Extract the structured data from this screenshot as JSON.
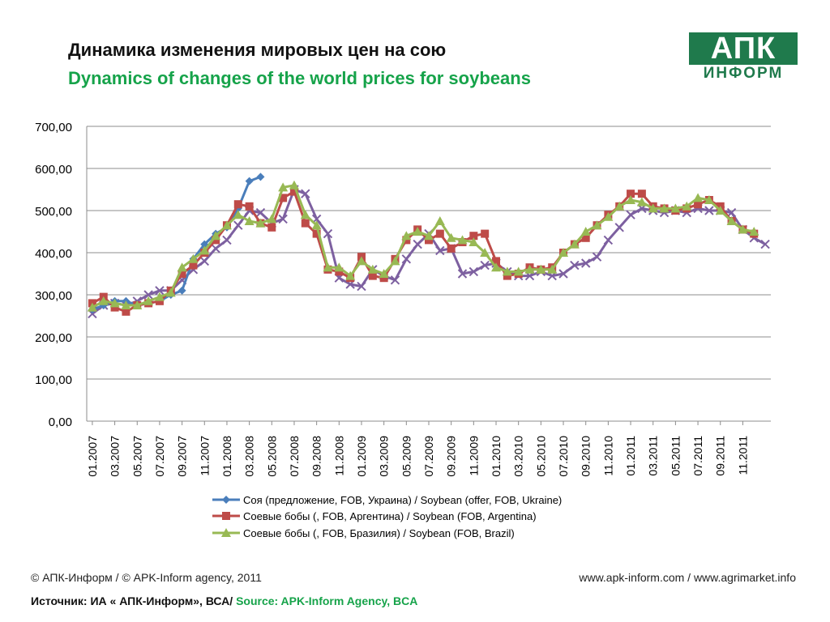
{
  "header": {
    "title_ru": "Динамика изменения мировых цен на сою",
    "title_en": "Dynamics of changes of the world prices for soybeans"
  },
  "logo": {
    "top": "АПК",
    "bottom": "ИНФОРМ"
  },
  "footer": {
    "copyright": "© АПК-Информ / © APK-Inform agency, 2011",
    "urls": "www.apk-inform.com / www.agrimarket.info",
    "source_ru": "Источник: ИА « АПК-Информ», ВСА/",
    "source_en": "Source: APK-Inform Agency, BCA"
  },
  "colors": {
    "ukraine": "#4a7ebb",
    "argentina": "#be4b48",
    "brazil": "#98b954",
    "fourth": "#7d60a0"
  },
  "chart_data": {
    "type": "line",
    "ylim": [
      0,
      700
    ],
    "ytick_labels": [
      "0,00",
      "100,00",
      "200,00",
      "300,00",
      "400,00",
      "500,00",
      "600,00",
      "700,00"
    ],
    "xtick_labels": [
      "01.2007",
      "03.2007",
      "05.2007",
      "07.2007",
      "09.2007",
      "11.2007",
      "01.2008",
      "03.2008",
      "05.2008",
      "07.2008",
      "09.2008",
      "11.2008",
      "01.2009",
      "03.2009",
      "05.2009",
      "07.2009",
      "09.2009",
      "11.2009",
      "01.2010",
      "03.2010",
      "05.2010",
      "07.2010",
      "09.2010",
      "11.2010",
      "01.2011",
      "03.2011",
      "05.2011",
      "07.2011",
      "09.2011",
      "11.2011"
    ],
    "grid": true,
    "legend_position": "bottom",
    "series": [
      {
        "name": "Соя (предложение, FOB, Украина) / Soybean (offer, FOB, Ukraine)",
        "marker": "diamond",
        "values": [
          265,
          275,
          285,
          285,
          275,
          280,
          285,
          300,
          310,
          385,
          420,
          445,
          460,
          505,
          570,
          580
        ]
      },
      {
        "name": "Соевые бобы (, FOB, Аргентина) / Soybean (FOB, Argentina)",
        "marker": "square",
        "values": [
          280,
          295,
          270,
          260,
          275,
          280,
          285,
          310,
          350,
          370,
          400,
          430,
          465,
          515,
          510,
          470,
          460,
          530,
          545,
          470,
          445,
          360,
          355,
          340,
          390,
          345,
          340,
          385,
          430,
          455,
          430,
          445,
          410,
          425,
          440,
          445,
          380,
          345,
          350,
          365,
          360,
          365,
          400,
          420,
          435,
          465,
          490,
          510,
          540,
          540,
          510,
          505,
          500,
          505,
          515,
          525,
          510,
          475,
          455,
          445
        ]
      },
      {
        "name": "Соевые бобы (, FOB, Бразилия) / Soybean (FOB, Brazil)",
        "marker": "triangle",
        "values": [
          270,
          285,
          280,
          275,
          275,
          285,
          295,
          305,
          365,
          385,
          405,
          440,
          465,
          490,
          475,
          470,
          480,
          555,
          560,
          490,
          465,
          365,
          365,
          345,
          380,
          360,
          350,
          380,
          440,
          450,
          440,
          475,
          435,
          430,
          425,
          400,
          365,
          355,
          355,
          360,
          360,
          360,
          400,
          420,
          450,
          465,
          485,
          510,
          525,
          520,
          505,
          505,
          505,
          510,
          530,
          525,
          500,
          475,
          455,
          450
        ]
      },
      {
        "name": "",
        "marker": "x",
        "values": [
          255,
          275,
          280,
          275,
          285,
          300,
          310,
          310,
          335,
          360,
          380,
          410,
          430,
          465,
          500,
          495,
          470,
          480,
          550,
          540,
          480,
          445,
          340,
          325,
          320,
          360,
          345,
          335,
          385,
          420,
          445,
          405,
          410,
          350,
          355,
          370,
          375,
          355,
          345,
          345,
          355,
          345,
          350,
          370,
          375,
          390,
          430,
          460,
          490,
          505,
          500,
          495,
          500,
          495,
          505,
          500,
          500,
          495,
          455,
          435,
          420
        ]
      }
    ]
  }
}
